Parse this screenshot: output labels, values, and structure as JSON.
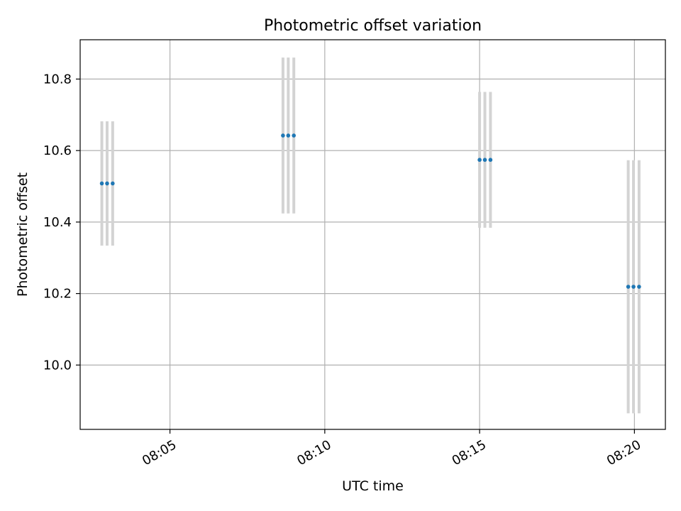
{
  "chart_data": {
    "type": "scatter",
    "title": "Photometric offset variation",
    "xlabel": "UTC time",
    "ylabel": "Photometric offset",
    "x_ticks": [
      "08:05",
      "08:10",
      "08:15",
      "08:20"
    ],
    "x_tick_minutes": [
      5,
      10,
      15,
      20
    ],
    "y_ticks": [
      "10.0",
      "10.2",
      "10.4",
      "10.6",
      "10.8"
    ],
    "y_tick_values": [
      10.0,
      10.2,
      10.4,
      10.6,
      10.8
    ],
    "xlim_minutes": [
      2.1,
      21.0
    ],
    "ylim": [
      9.82,
      10.91
    ],
    "grid": true,
    "marker_color": "#1f77b4",
    "errorbar_color": "#d3d3d3",
    "points": [
      {
        "minute": 2.8,
        "y": 10.508,
        "err": 0.174
      },
      {
        "minute": 2.97,
        "y": 10.508,
        "err": 0.174
      },
      {
        "minute": 3.15,
        "y": 10.508,
        "err": 0.174
      },
      {
        "minute": 8.65,
        "y": 10.642,
        "err": 0.218
      },
      {
        "minute": 8.82,
        "y": 10.642,
        "err": 0.218
      },
      {
        "minute": 9.0,
        "y": 10.642,
        "err": 0.218
      },
      {
        "minute": 15.0,
        "y": 10.574,
        "err": 0.19
      },
      {
        "minute": 15.17,
        "y": 10.574,
        "err": 0.19
      },
      {
        "minute": 15.35,
        "y": 10.574,
        "err": 0.19
      },
      {
        "minute": 19.8,
        "y": 10.219,
        "err": 0.354
      },
      {
        "minute": 19.97,
        "y": 10.219,
        "err": 0.354
      },
      {
        "minute": 20.15,
        "y": 10.219,
        "err": 0.354
      }
    ]
  }
}
